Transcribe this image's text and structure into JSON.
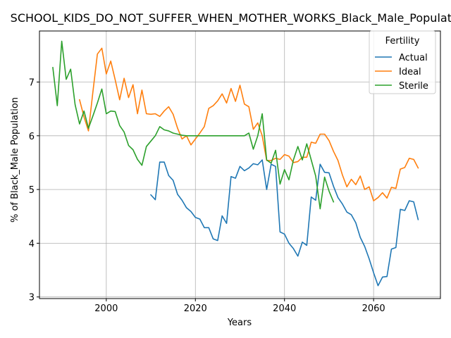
{
  "chart_data": {
    "type": "line",
    "title": "SCHOOL_KIDS_DO_NOT_SUFFER_WHEN_MOTHER_WORKS_Black_Male_Population",
    "xlabel": "Years",
    "ylabel": "% of Black_Male Population",
    "xlim": [
      1985,
      2075
    ],
    "ylim": [
      2.97,
      7.95
    ],
    "xticks": [
      2000,
      2020,
      2040,
      2060
    ],
    "yticks": [
      3,
      4,
      5,
      6,
      7
    ],
    "grid": true,
    "legend": {
      "title": "Fertility",
      "position": "top-right"
    },
    "series": [
      {
        "name": "Actual",
        "color": "#1f77b4",
        "x": [
          2010,
          2011,
          2012,
          2013,
          2014,
          2015,
          2016,
          2017,
          2018,
          2019,
          2020,
          2021,
          2022,
          2023,
          2024,
          2025,
          2026,
          2027,
          2028,
          2029,
          2030,
          2031,
          2032,
          2033,
          2034,
          2035,
          2036,
          2037,
          2038,
          2039,
          2040,
          2041,
          2042,
          2043,
          2044,
          2045,
          2046,
          2047,
          2048,
          2049,
          2050,
          2051,
          2052,
          2053,
          2054,
          2055,
          2056,
          2057,
          2058,
          2059,
          2060,
          2061,
          2062,
          2063,
          2064,
          2065,
          2066,
          2067,
          2068,
          2069,
          2070
        ],
        "y": [
          4.9,
          4.81,
          5.51,
          5.51,
          5.26,
          5.17,
          4.91,
          4.8,
          4.66,
          4.59,
          4.48,
          4.45,
          4.29,
          4.29,
          4.08,
          4.05,
          4.51,
          4.37,
          5.24,
          5.21,
          5.43,
          5.35,
          5.4,
          5.48,
          5.46,
          5.55,
          5.0,
          5.47,
          5.43,
          4.21,
          4.17,
          4.0,
          3.9,
          3.76,
          4.02,
          3.96,
          4.86,
          4.8,
          5.47,
          5.32,
          5.31,
          5.06,
          4.85,
          4.73,
          4.58,
          4.53,
          4.38,
          4.11,
          3.94,
          3.71,
          3.45,
          3.21,
          3.37,
          3.38,
          3.89,
          3.92,
          4.63,
          4.61,
          4.79,
          4.77,
          4.44
        ]
      },
      {
        "name": "Ideal",
        "color": "#ff7f0e",
        "x": [
          1994,
          1995,
          1996,
          1997,
          1998,
          1999,
          2000,
          2001,
          2002,
          2003,
          2004,
          2005,
          2006,
          2007,
          2008,
          2009,
          2010,
          2011,
          2012,
          2013,
          2014,
          2015,
          2016,
          2017,
          2018,
          2019,
          2020,
          2021,
          2022,
          2023,
          2024,
          2025,
          2026,
          2027,
          2028,
          2029,
          2030,
          2031,
          2032,
          2033,
          2034,
          2035,
          2036,
          2037,
          2038,
          2039,
          2040,
          2041,
          2042,
          2043,
          2044,
          2045,
          2046,
          2047,
          2048,
          2049,
          2050,
          2051,
          2052,
          2053,
          2054,
          2055,
          2056,
          2057,
          2058,
          2059,
          2060,
          2061,
          2062,
          2063,
          2064,
          2065,
          2066,
          2067,
          2068,
          2069,
          2070
        ],
        "y": [
          6.67,
          6.35,
          6.09,
          6.82,
          7.52,
          7.63,
          7.15,
          7.39,
          7.04,
          6.67,
          7.07,
          6.71,
          6.95,
          6.41,
          6.85,
          6.41,
          6.4,
          6.41,
          6.36,
          6.46,
          6.54,
          6.4,
          6.14,
          5.94,
          6.0,
          5.83,
          5.94,
          6.05,
          6.17,
          6.51,
          6.56,
          6.65,
          6.78,
          6.61,
          6.88,
          6.64,
          6.94,
          6.59,
          6.54,
          6.12,
          6.24,
          6.0,
          5.54,
          5.54,
          5.58,
          5.56,
          5.65,
          5.62,
          5.5,
          5.52,
          5.6,
          5.6,
          5.88,
          5.86,
          6.03,
          6.03,
          5.91,
          5.71,
          5.54,
          5.27,
          5.05,
          5.19,
          5.09,
          5.25,
          5.0,
          5.05,
          4.79,
          4.85,
          4.94,
          4.84,
          5.04,
          5.02,
          5.38,
          5.41,
          5.58,
          5.56,
          5.4
        ]
      },
      {
        "name": "Sterile",
        "color": "#2ca02c",
        "x": [
          1988,
          1989,
          1990,
          1991,
          1992,
          1993,
          1994,
          1995,
          1996,
          1997,
          1998,
          1999,
          2000,
          2001,
          2002,
          2003,
          2004,
          2005,
          2006,
          2007,
          2008,
          2009,
          2010,
          2011,
          2012,
          2013,
          2014,
          2015,
          2016,
          2017,
          2018,
          2019,
          2020,
          2021,
          2022,
          2023,
          2024,
          2025,
          2026,
          2027,
          2028,
          2029,
          2030,
          2031,
          2032,
          2033,
          2034,
          2035,
          2036,
          2037,
          2038,
          2039,
          2040,
          2041,
          2042,
          2043,
          2044,
          2045,
          2046,
          2047,
          2048,
          2049,
          2050,
          2051
        ],
        "y": [
          7.27,
          6.56,
          7.76,
          7.05,
          7.24,
          6.58,
          6.22,
          6.46,
          6.14,
          6.37,
          6.61,
          6.87,
          6.41,
          6.46,
          6.45,
          6.19,
          6.07,
          5.82,
          5.74,
          5.56,
          5.45,
          5.8,
          5.9,
          6.0,
          6.17,
          6.11,
          6.09,
          6.05,
          6.03,
          6.01,
          6.0,
          6.0,
          6.0,
          6.0,
          6.0,
          6.0,
          6.0,
          6.0,
          6.0,
          6.0,
          6.0,
          6.0,
          6.0,
          6.0,
          6.05,
          5.75,
          6.0,
          6.41,
          5.55,
          5.49,
          5.73,
          5.1,
          5.37,
          5.18,
          5.55,
          5.8,
          5.55,
          5.85,
          5.55,
          5.25,
          4.64,
          5.23,
          4.97,
          4.77
        ]
      }
    ]
  }
}
